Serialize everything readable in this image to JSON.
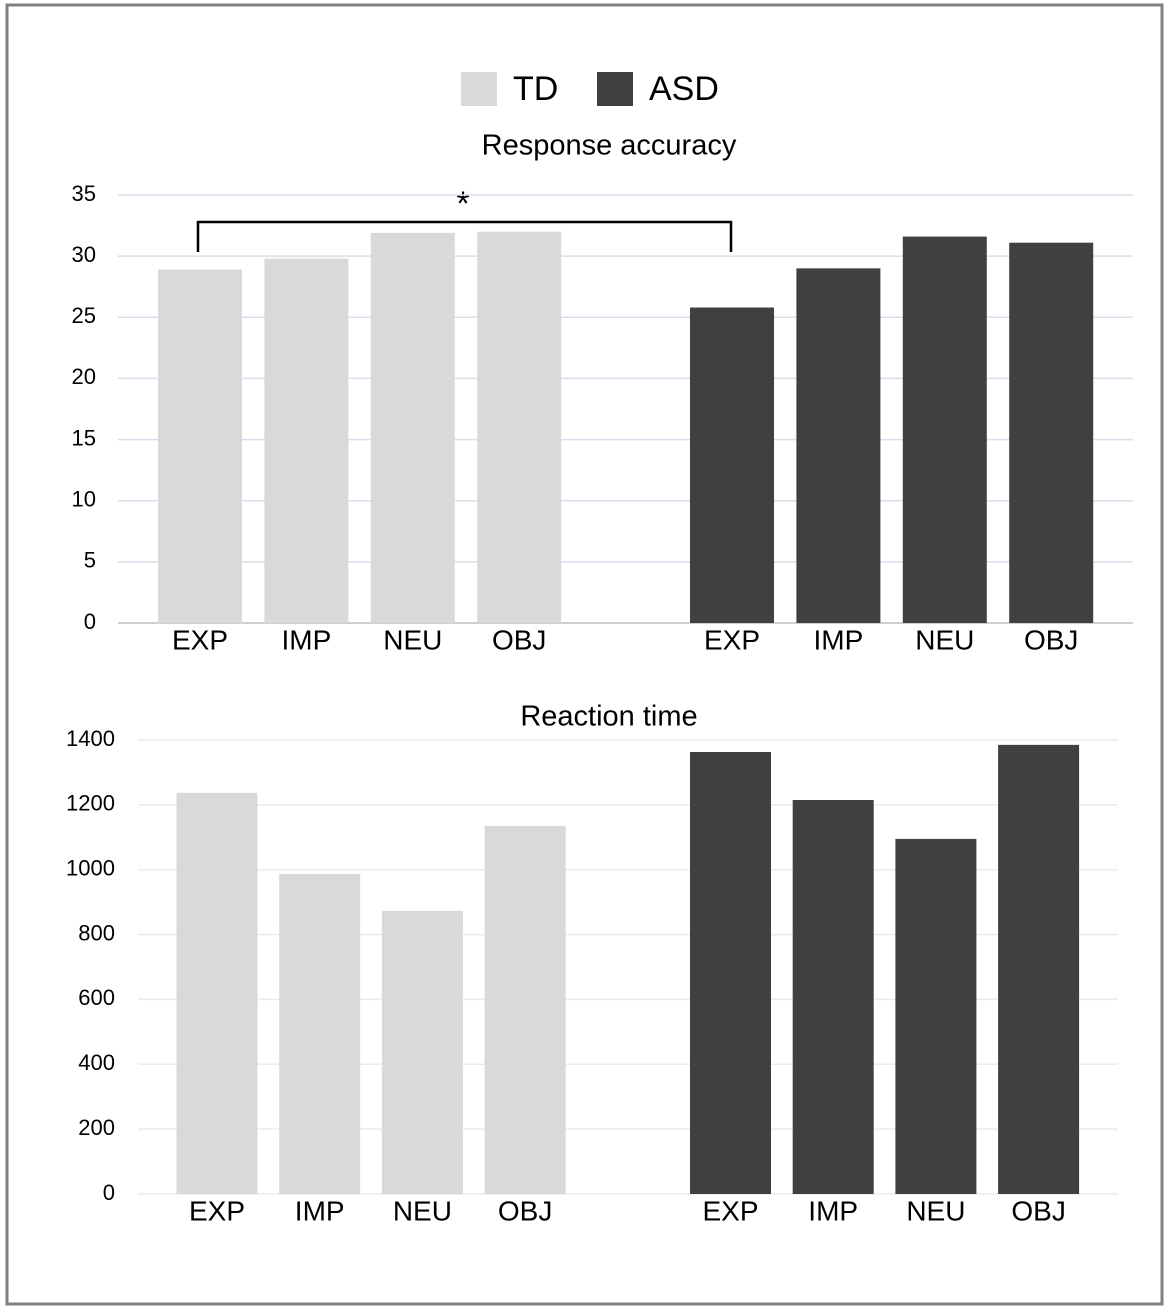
{
  "chart_data": [
    {
      "type": "bar",
      "title": "Response accuracy",
      "categories": [
        "EXP",
        "IMP",
        "NEU",
        "OBJ"
      ],
      "series": [
        {
          "name": "TD",
          "color": "#d9d9d9",
          "values": [
            28.9,
            29.8,
            31.9,
            32.0
          ]
        },
        {
          "name": "ASD",
          "color": "#404040",
          "values": [
            25.8,
            29.0,
            31.6,
            31.1
          ]
        }
      ],
      "ylim": [
        0,
        35
      ],
      "yticks": [
        0,
        5,
        10,
        15,
        20,
        25,
        30,
        35
      ],
      "grid": true,
      "annotation": "*"
    },
    {
      "type": "bar",
      "title": "Reaction time",
      "categories": [
        "EXP",
        "IMP",
        "NEU",
        "OBJ"
      ],
      "series": [
        {
          "color": "#d9d9d9",
          "values": [
            1237,
            987,
            873,
            1135
          ]
        },
        {
          "color": "#404040",
          "values": [
            1363,
            1215,
            1095,
            1385
          ]
        }
      ],
      "ylim": [
        0,
        1400
      ],
      "yticks": [
        0,
        200,
        400,
        600,
        800,
        1000,
        1200,
        1400
      ],
      "grid": true
    }
  ]
}
